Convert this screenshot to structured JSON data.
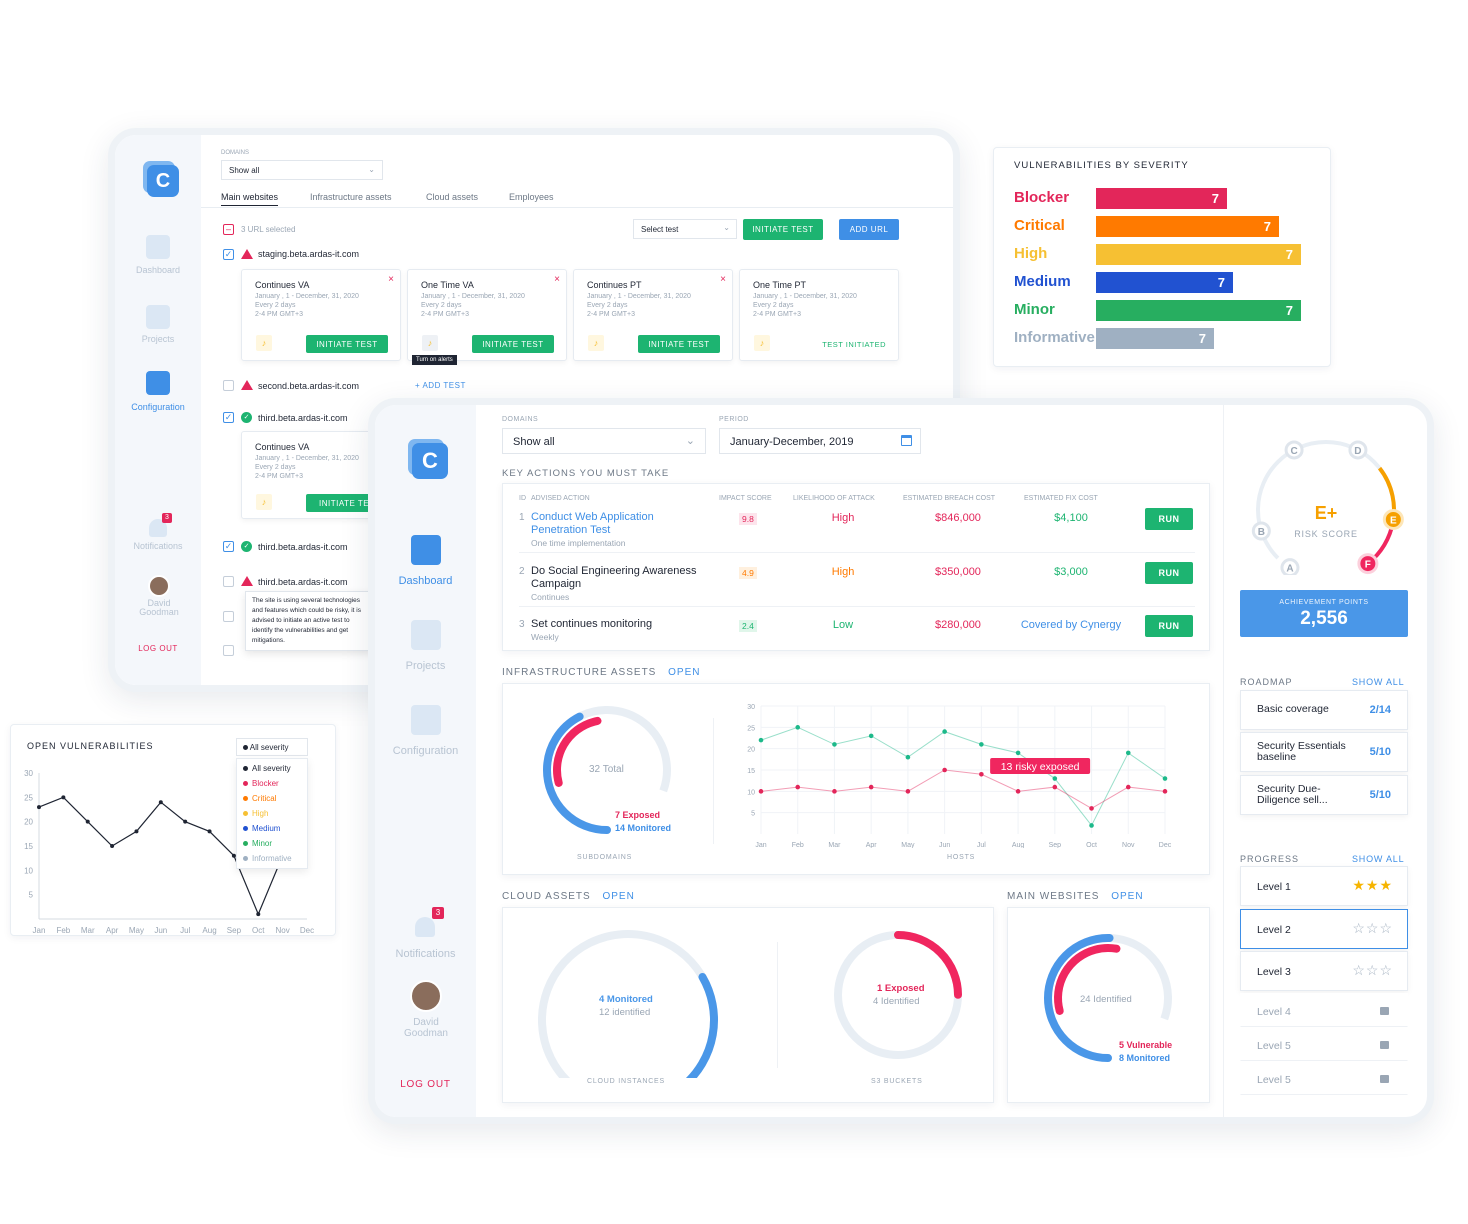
{
  "back_window": {
    "domains_label": "DOMAINS",
    "domains_value": "Show all",
    "tabs": [
      "Main websites",
      "Infrastructure assets",
      "Cloud assets",
      "Employees"
    ],
    "selected_count": "3 URL selected",
    "select_test": "Select test",
    "initiate_test": "INITIATE TEST",
    "add_url": "ADD URL",
    "sidebar": {
      "logo": "C",
      "dashboard": "Dashboard",
      "projects": "Projects",
      "configuration": "Configuration",
      "notifications": "Notifications",
      "notif_count": "3",
      "user": "David Goodman",
      "logout": "LOG OUT"
    },
    "domains": [
      {
        "name": "staging.beta.ardas-it.com",
        "status": "warn"
      },
      {
        "name": "second.beta.ardas-it.com",
        "status": "warn",
        "add_test": "ADD TEST"
      },
      {
        "name": "third.beta.ardas-it.com",
        "status": "ok"
      },
      {
        "name": "third.beta.ardas-it.com",
        "status": "ok"
      },
      {
        "name": "third.beta.ardas-it.com",
        "status": "warn"
      }
    ],
    "test_cards": [
      {
        "title": "Continues VA",
        "dates": "January , 1 - December, 31, 2020",
        "freq": "Every 2 days",
        "time": "2-4 PM GMT+3",
        "action": "INITIATE TEST"
      },
      {
        "title": "One Time VA",
        "dates": "January , 1 - December, 31, 2020",
        "freq": "Every 2 days",
        "time": "2-4 PM GMT+3",
        "action": "INITIATE TEST"
      },
      {
        "title": "Continues  PT",
        "dates": "January , 1 - December, 31, 2020",
        "freq": "Every 2 days",
        "time": "2-4 PM GMT+3",
        "action": "INITIATE TEST"
      },
      {
        "title": "One Time PT",
        "dates": "January , 1 - December, 31, 2020",
        "freq": "Every 2 days",
        "time": "2-4 PM GMT+3",
        "action": "TEST INITIATED"
      }
    ],
    "third_card": {
      "title": "Continues VA",
      "dates": "January , 1 - December, 31, 2020",
      "freq": "Every 2 days",
      "time": "2-4 PM GMT+3",
      "action": "INITIATE TES"
    },
    "tooltip_alert": "Turn on alerts",
    "tooltip_risk": "The site is using several technologies and features which could be risky, it is advised to initiate an active test to identify the vulnerabilities and get mitigations."
  },
  "severity_panel": {
    "title": "VULNERABILITIES BY SEVERITY",
    "items": [
      {
        "label": "Blocker",
        "value": "7",
        "color": "#e3265a",
        "fraction": 0.6
      },
      {
        "label": "Critical",
        "value": "7",
        "color": "#ff7a00",
        "fraction": 0.84
      },
      {
        "label": "High",
        "value": "7",
        "color": "#f6c033",
        "fraction": 0.94
      },
      {
        "label": "Medium",
        "value": "7",
        "color": "#2152d1",
        "fraction": 0.63
      },
      {
        "label": "Minor",
        "value": "7",
        "color": "#27ae60",
        "fraction": 0.94
      },
      {
        "label": "Informative",
        "value": "7",
        "color": "#9fb0c2",
        "fraction": 0.54
      }
    ]
  },
  "open_vuln": {
    "title": "OPEN VULNERABILITIES",
    "filter": "All severity",
    "options": [
      {
        "label": "All severity",
        "color": "#1f2533"
      },
      {
        "label": "Blocker",
        "color": "#e3265a"
      },
      {
        "label": "Critical",
        "color": "#ff7a00"
      },
      {
        "label": "High",
        "color": "#f6c033"
      },
      {
        "label": "Medium",
        "color": "#2152d1"
      },
      {
        "label": "Minor",
        "color": "#27ae60"
      },
      {
        "label": "Informative",
        "color": "#9fb0c2"
      }
    ]
  },
  "chart_data": [
    {
      "type": "line",
      "title": "OPEN VULNERABILITIES",
      "categories": [
        "Jan",
        "Feb",
        "Mar",
        "Apr",
        "May",
        "Jun",
        "Jul",
        "Aug",
        "Sep",
        "Oct",
        "Nov",
        "Dec"
      ],
      "yticks": [
        "5",
        "10",
        "15",
        "20",
        "25",
        "30"
      ],
      "ylim": [
        0,
        30
      ],
      "series": [
        {
          "values": [
            23,
            25,
            20,
            15,
            18,
            24,
            20,
            18,
            13,
            1,
            13,
            null
          ]
        }
      ]
    },
    {
      "type": "line",
      "title": "HOSTS",
      "categories": [
        "Jan",
        "Feb",
        "Mar",
        "Apr",
        "May",
        "Jun",
        "Jul",
        "Aug",
        "Sep",
        "Oct",
        "Nov",
        "Dec"
      ],
      "yticks": [
        "5",
        "10",
        "15",
        "20",
        "25",
        "30"
      ],
      "ylim": [
        0,
        30
      ],
      "series": [
        {
          "color": "#1db98a",
          "values": [
            22,
            25,
            21,
            23,
            18,
            24,
            21,
            19,
            13,
            2,
            19,
            13
          ]
        },
        {
          "color": "#e3265a",
          "values": [
            10,
            11,
            10,
            11,
            10,
            15,
            14,
            10,
            11,
            6,
            11,
            10
          ]
        }
      ],
      "annotation": "13 risky exposed"
    }
  ],
  "front_window": {
    "sidebar": {
      "logo": "C",
      "dashboard": "Dashboard",
      "projects": "Projects",
      "configuration": "Configuration",
      "notifications": "Notifications",
      "notif_count": "3",
      "user": "David Goodman",
      "logout": "LOG OUT"
    },
    "domains_label": "DOMAINS",
    "domains_value": "Show all",
    "period_label": "PERIOD",
    "period_value": "January-December, 2019",
    "key_actions_title": "KEY ACTIONS YOU MUST TAKE",
    "headers": [
      "ID",
      "ADVISED ACTION",
      "IMPACT SCORE",
      "LIKELIHOOD OF ATTACK",
      "ESTIMATED BREACH COST",
      "ESTIMATED FIX COST"
    ],
    "actions": [
      {
        "id": "1",
        "title": "Conduct Web Application Penetration Test",
        "sub": "One time implementation",
        "score": "9.8",
        "score_color": "#e3265a",
        "score_bg": "#fde4ec",
        "likelihood": "High",
        "lik_color": "#e3265a",
        "breach": "$846,000",
        "fix": "$4,100",
        "fix_color": "#1db471",
        "run": "RUN",
        "link": true
      },
      {
        "id": "2",
        "title": "Do Social Engineering Awareness Campaign",
        "sub": "Continues",
        "score": "4.9",
        "score_color": "#ff7a00",
        "score_bg": "#fff0de",
        "likelihood": "High",
        "lik_color": "#ff7a00",
        "breach": "$350,000",
        "fix": "$3,000",
        "fix_color": "#1db471",
        "run": "RUN",
        "link": false
      },
      {
        "id": "3",
        "title": "Set continues monitoring",
        "sub": "Weekly",
        "score": "2.4",
        "score_color": "#1db471",
        "score_bg": "#e0f6ea",
        "likelihood": "Low",
        "lik_color": "#1db471",
        "breach": "$280,000",
        "fix": "Covered by Cynergy",
        "fix_color": "#3f8fe6",
        "run": "RUN",
        "link": false
      }
    ],
    "infra_title": "INFRASTRUCTURE ASSETS",
    "open": "OPEN",
    "subdomains": {
      "total": "32 Total",
      "exposed": "7 Exposed",
      "monitored": "14 Monitored",
      "label": "SUBDOMAINS"
    },
    "hosts_label": "HOSTS",
    "cloud_title": "CLOUD ASSETS",
    "cloud_instances": {
      "monitored": "4 Monitored",
      "identified": "12 identified",
      "label": "CLOUD INSTANCES"
    },
    "s3": {
      "exposed": "1 Exposed",
      "identified": "4 Identified",
      "label": "S3 BUCKETS"
    },
    "main_title": "MAIN WEBSITES",
    "main_websites": {
      "identified": "24 Identified",
      "vulnerable": "5 Vulnerable",
      "monitored": "8 Monitored"
    }
  },
  "right_panel": {
    "grades": [
      "A",
      "B",
      "C",
      "D",
      "E",
      "F"
    ],
    "score": "E+",
    "score_label": "RISK SCORE",
    "achievement_label": "ACHIEVEMENT POINTS",
    "achievement_value": "2,556",
    "roadmap_title": "ROADMAP",
    "show_all": "SHOW ALL",
    "roadmap": [
      {
        "title": "Basic coverage",
        "value": "2/14"
      },
      {
        "title": "Security Essentials baseline",
        "value": "5/10"
      },
      {
        "title": "Security Due-Diligence sell...",
        "value": "5/10"
      }
    ],
    "progress_title": "PROGRESS",
    "progress": [
      {
        "title": "Level 1",
        "stars": "★★★",
        "state": "done"
      },
      {
        "title": "Level 2",
        "stars": "☆☆☆",
        "state": "active"
      },
      {
        "title": "Level 3",
        "stars": "☆☆☆",
        "state": "open"
      },
      {
        "title": "Level 4",
        "state": "locked"
      },
      {
        "title": "Level 5",
        "state": "locked"
      },
      {
        "title": "Level 5",
        "state": "locked"
      }
    ]
  }
}
